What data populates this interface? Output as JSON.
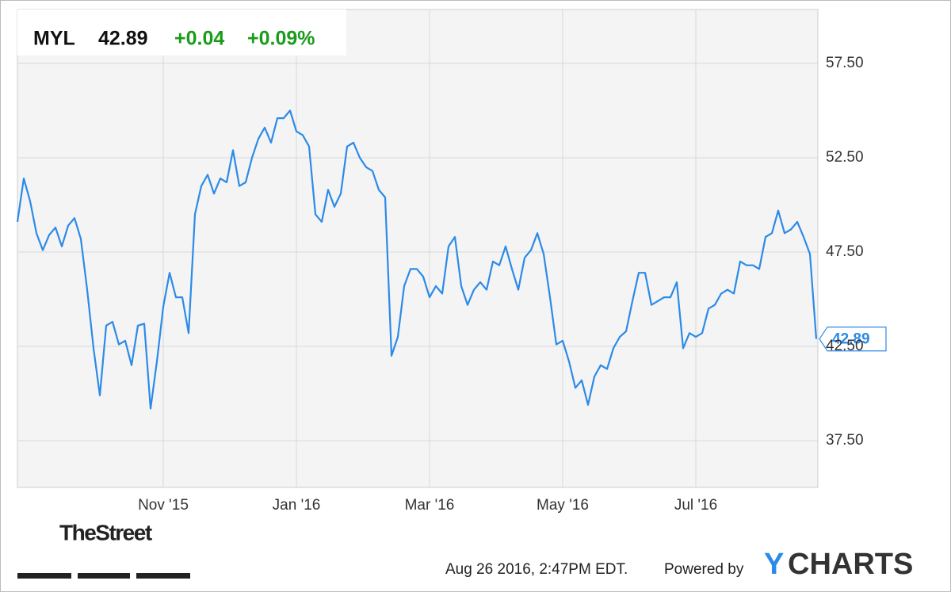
{
  "header": {
    "symbol": "MYL",
    "price": 42.89,
    "change": "+0.04",
    "change_percent": "+0.09%"
  },
  "chart_data": {
    "type": "line",
    "categories": [
      null,
      null,
      null,
      null,
      null,
      null,
      null,
      null,
      null,
      null,
      null,
      null,
      null,
      null,
      null,
      null,
      null,
      null,
      null,
      null,
      null,
      null,
      null,
      "Nov '15",
      null,
      null,
      null,
      null,
      null,
      null,
      null,
      null,
      null,
      null,
      null,
      null,
      null,
      null,
      null,
      null,
      null,
      null,
      null,
      null,
      "Jan '16",
      null,
      null,
      null,
      null,
      null,
      null,
      null,
      null,
      null,
      null,
      null,
      null,
      null,
      null,
      null,
      null,
      null,
      null,
      null,
      null,
      "Mar '16",
      null,
      null,
      null,
      null,
      null,
      null,
      null,
      null,
      null,
      null,
      null,
      null,
      null,
      null,
      null,
      null,
      null,
      null,
      null,
      null,
      "May '16",
      null,
      null,
      null,
      null,
      null,
      null,
      null,
      null,
      null,
      null,
      null,
      null,
      null,
      null,
      null,
      null,
      null,
      null,
      null,
      null,
      "Jul '16",
      null,
      null,
      null,
      null,
      null,
      null,
      null,
      null,
      null,
      null,
      null,
      null,
      null,
      null,
      null,
      null,
      null,
      null,
      null
    ],
    "series": [
      {
        "name": "MYL",
        "color": "#2c8ae8",
        "values": [
          49.1,
          51.4,
          50.2,
          48.5,
          47.6,
          48.4,
          48.8,
          47.8,
          48.9,
          49.3,
          48.2,
          45.5,
          42.4,
          39.9,
          43.6,
          43.8,
          42.6,
          42.8,
          41.5,
          43.6,
          43.7,
          39.2,
          41.7,
          44.6,
          46.4,
          45.1,
          45.1,
          43.2,
          49.5,
          51.0,
          51.6,
          50.6,
          51.4,
          51.2,
          52.9,
          51.0,
          51.2,
          52.5,
          53.5,
          54.1,
          53.3,
          54.6,
          54.6,
          55.0,
          53.9,
          53.7,
          53.1,
          49.5,
          49.1,
          50.8,
          49.9,
          50.6,
          53.1,
          53.3,
          52.5,
          52.0,
          51.8,
          50.8,
          50.4,
          42.0,
          43.0,
          45.7,
          46.6,
          46.6,
          46.2,
          45.1,
          45.7,
          45.3,
          47.8,
          48.3,
          45.7,
          44.7,
          45.5,
          45.9,
          45.5,
          47.0,
          46.8,
          47.8,
          46.6,
          45.5,
          47.2,
          47.6,
          48.5,
          47.4,
          45.1,
          42.6,
          42.8,
          41.7,
          40.3,
          40.7,
          39.4,
          40.9,
          41.5,
          41.3,
          42.4,
          43.0,
          43.3,
          44.9,
          46.4,
          46.4,
          44.7,
          44.9,
          45.1,
          45.1,
          45.9,
          42.4,
          43.2,
          43.0,
          43.2,
          44.5,
          44.7,
          45.3,
          45.5,
          45.3,
          47.0,
          46.8,
          46.8,
          46.6,
          48.3,
          48.5,
          49.7,
          48.5,
          48.7,
          49.1,
          48.3,
          47.4,
          42.89
        ]
      }
    ],
    "ylim": [
      35.02,
      60.36
    ],
    "yticks": [
      {
        "value": 37.5,
        "label": "37.50"
      },
      {
        "value": 42.5,
        "label": "42.50"
      },
      {
        "value": 47.5,
        "label": "47.50"
      },
      {
        "value": 52.5,
        "label": "52.50"
      },
      {
        "value": 57.5,
        "label": "57.50"
      }
    ],
    "grid": true
  },
  "footer": {
    "brand": "TheStreet",
    "timestamp": "Aug 26 2016, 2:47PM EDT.",
    "powered_by": "Powered by",
    "logo_parts": [
      "Y",
      "CHARTS"
    ]
  }
}
